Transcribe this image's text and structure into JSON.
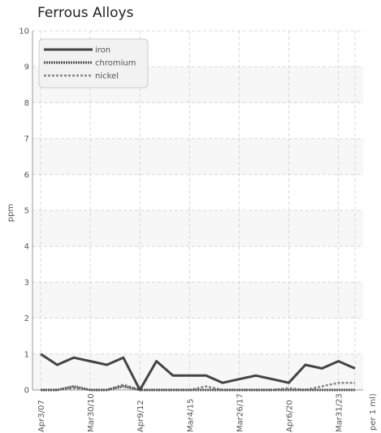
{
  "chart_data": {
    "type": "line",
    "title": "Ferrous Alloys",
    "ylabel": "ppm",
    "xlabel_partial": "per 1 ml)",
    "ylim": [
      0,
      10
    ],
    "yticks": [
      0,
      1,
      2,
      3,
      4,
      5,
      6,
      7,
      8,
      9,
      10
    ],
    "x_count": 20,
    "x_tick_labels": [
      {
        "index": 0,
        "label": "Apr3/07"
      },
      {
        "index": 3,
        "label": "Mar30/10"
      },
      {
        "index": 6,
        "label": "Apr9/12"
      },
      {
        "index": 9,
        "label": "Mar4/15"
      },
      {
        "index": 12,
        "label": "Mar26/17"
      },
      {
        "index": 15,
        "label": "Apr6/20"
      },
      {
        "index": 18,
        "label": "Mar31/23"
      }
    ],
    "grid": true,
    "legend_position": "top-left",
    "series": [
      {
        "name": "iron",
        "color": "#444444",
        "style": "solid",
        "values": [
          1.0,
          0.7,
          0.9,
          0.8,
          0.7,
          0.9,
          0.0,
          0.8,
          0.4,
          0.4,
          0.4,
          0.2,
          0.3,
          0.4,
          0.3,
          0.2,
          0.7,
          0.6,
          0.8,
          0.6
        ]
      },
      {
        "name": "chromium",
        "color": "#555555",
        "style": "dotted",
        "values": [
          0.0,
          0.0,
          0.1,
          0.0,
          0.0,
          0.1,
          0.0,
          0.0,
          0.0,
          0.0,
          0.0,
          0.0,
          0.0,
          0.0,
          0.0,
          0.0,
          0.0,
          0.0,
          0.0,
          0.0
        ]
      },
      {
        "name": "nickel",
        "color": "#888888",
        "style": "dashed",
        "values": [
          0.0,
          0.0,
          0.05,
          0.0,
          0.0,
          0.15,
          0.0,
          0.0,
          0.0,
          0.0,
          0.1,
          0.0,
          0.0,
          0.0,
          0.0,
          0.05,
          0.0,
          0.1,
          0.2,
          0.2
        ]
      }
    ]
  }
}
